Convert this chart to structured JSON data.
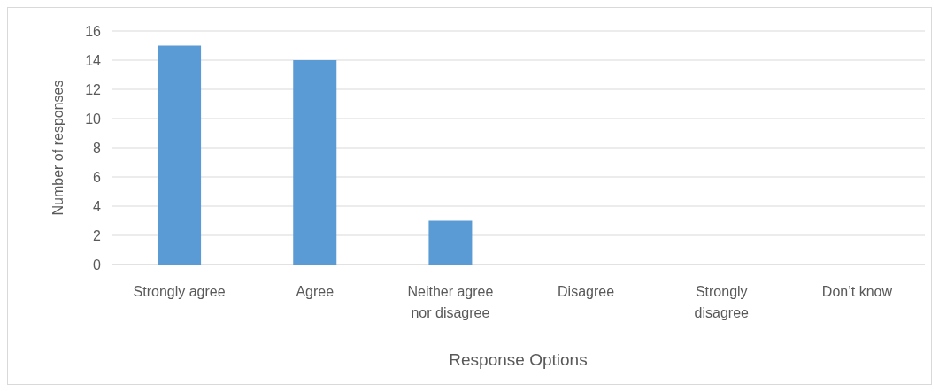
{
  "chart_data": {
    "type": "bar",
    "xlabel": "Response Options",
    "ylabel": "Number of responses",
    "categories": [
      "Strongly agree",
      "Agree",
      "Neither agree nor disagree",
      "Disagree",
      "Strongly disagree",
      "Don’t know"
    ],
    "values": [
      15,
      14,
      3,
      0,
      0,
      0
    ],
    "color": "#5b9bd5",
    "ylim": [
      0,
      16
    ],
    "yticks": [
      0,
      2,
      4,
      6,
      8,
      10,
      12,
      14,
      16
    ],
    "grid": "y"
  }
}
